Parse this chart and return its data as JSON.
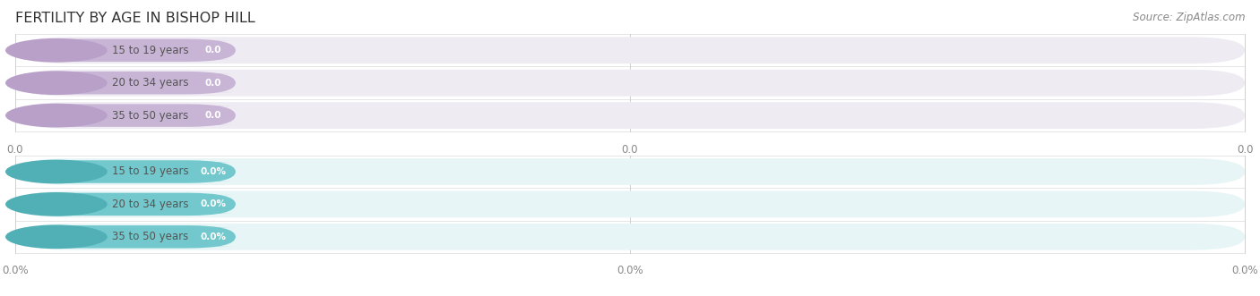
{
  "title": "FERTILITY BY AGE IN BISHOP HILL",
  "source": "Source: ZipAtlas.com",
  "top_group": {
    "labels": [
      "15 to 19 years",
      "20 to 34 years",
      "35 to 50 years"
    ],
    "values": [
      0.0,
      0.0,
      0.0
    ],
    "value_labels": [
      "0.0",
      "0.0",
      "0.0"
    ],
    "bar_color": "#c8b5d5",
    "cap_color": "#b8a0c8",
    "bar_bg_color": "#eeebf3",
    "text_color": "#555555",
    "value_text_color": "#ffffff",
    "tick_labels": [
      "0.0",
      "0.0",
      "0.0"
    ],
    "separator_color": "#dddddd"
  },
  "bottom_group": {
    "labels": [
      "15 to 19 years",
      "20 to 34 years",
      "35 to 50 years"
    ],
    "values": [
      0.0,
      0.0,
      0.0
    ],
    "value_labels": [
      "0.0%",
      "0.0%",
      "0.0%"
    ],
    "bar_color": "#72c8cc",
    "cap_color": "#50b0b5",
    "bar_bg_color": "#e8f5f6",
    "text_color": "#555555",
    "value_text_color": "#ffffff",
    "tick_labels": [
      "0.0%",
      "0.0%",
      "0.0%"
    ],
    "separator_color": "#dddddd"
  },
  "bg_color": "#ffffff",
  "title_color": "#333333",
  "title_fontsize": 11.5,
  "source_color": "#888888",
  "source_fontsize": 8.5,
  "tick_color": "#888888",
  "tick_fontsize": 8.5,
  "grid_color": "#d0d0d0",
  "label_fontsize": 8.5,
  "value_fontsize": 7.5
}
